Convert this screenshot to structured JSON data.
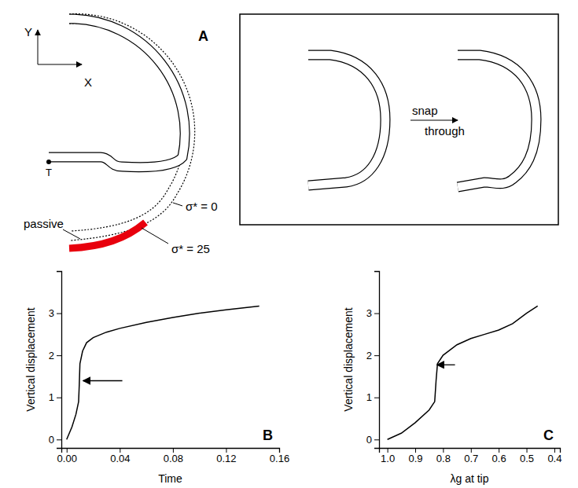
{
  "panel_a": {
    "label": "A",
    "axes": [
      "Y",
      "X"
    ],
    "tip": "T",
    "passive": "passive",
    "sigma_0": "σ* = 0",
    "sigma_25": "σ* = 25",
    "snap": [
      "snap",
      "through"
    ]
  },
  "chart_data": [
    {
      "type": "line",
      "title": "B",
      "xlabel": "Time",
      "ylabel": "Vertical displacement",
      "color": "#000000",
      "x": [
        0,
        0.004,
        0.007,
        0.009,
        0.0095,
        0.01,
        0.012,
        0.015,
        0.02,
        0.03,
        0.04,
        0.06,
        0.08,
        0.1,
        0.12,
        0.145
      ],
      "values": [
        0,
        0.3,
        0.6,
        0.9,
        1.3,
        1.8,
        2.1,
        2.3,
        2.42,
        2.55,
        2.64,
        2.78,
        2.9,
        3.0,
        3.08,
        3.17
      ],
      "xlim": [
        -0.004,
        0.16
      ],
      "ylim": [
        -0.2,
        4.0
      ],
      "xticks": [
        {
          "value": 0,
          "label": "0.00"
        },
        {
          "value": 0.04,
          "label": "0.04"
        },
        {
          "value": 0.08,
          "label": "0.08"
        },
        {
          "value": 0.12,
          "label": "0.12"
        },
        {
          "value": 0.16,
          "label": "0.16"
        }
      ],
      "yticks": [
        0,
        1,
        2,
        3
      ]
    },
    {
      "type": "line",
      "title": "C",
      "xlabel": "λg at tip",
      "ylabel": "Vertical displacement",
      "color": "#000000",
      "x": [
        1.0,
        0.95,
        0.9,
        0.85,
        0.83,
        0.825,
        0.82,
        0.8,
        0.75,
        0.7,
        0.65,
        0.6,
        0.55,
        0.5,
        0.46
      ],
      "values": [
        0,
        0.15,
        0.4,
        0.7,
        0.9,
        1.4,
        1.8,
        2.0,
        2.25,
        2.4,
        2.5,
        2.6,
        2.75,
        3.0,
        3.17
      ],
      "xlim": [
        1.03,
        0.38
      ],
      "ylim": [
        -0.2,
        4.0
      ],
      "xticks": [
        {
          "value": 1.0,
          "label": "1.0"
        },
        0.9,
        0.8,
        0.7,
        0.6,
        0.5,
        0.4
      ],
      "yticks": [
        0,
        1,
        2,
        3
      ]
    }
  ]
}
